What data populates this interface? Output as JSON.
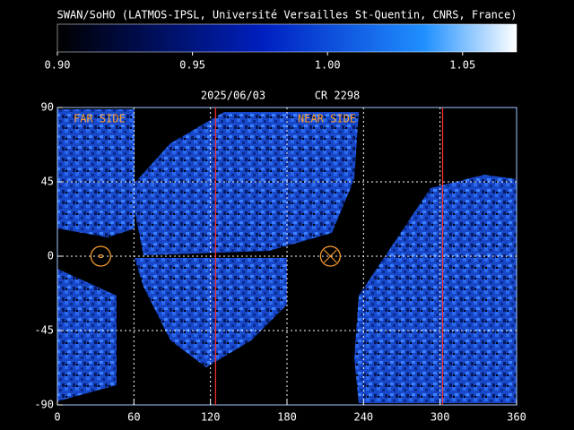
{
  "header": {
    "title": "SWAN/SoHO (LATMOS-IPSL, Université Versailles St-Quentin, CNRS, France)"
  },
  "chart_data": {
    "type": "heatmap",
    "colorbar": {
      "lim": [
        0.9,
        1.07
      ],
      "ticks": [
        {
          "value": 0.9,
          "label": "0.90"
        },
        {
          "value": 0.95,
          "label": "0.95"
        },
        {
          "value": 1.0,
          "label": "1.00"
        },
        {
          "value": 1.05,
          "label": "1.05"
        }
      ]
    },
    "date": "2025/06/03",
    "rotation": "CR 2298",
    "xlim": [
      0,
      360
    ],
    "ylim": [
      -90,
      90
    ],
    "xticks": [
      0,
      60,
      120,
      180,
      240,
      300,
      360
    ],
    "yticks": [
      90,
      45,
      0,
      -45,
      -90
    ],
    "grid": true,
    "annotations": [
      {
        "text": "FAR SIDE"
      },
      {
        "text": "NEAR SIDE"
      }
    ],
    "meridians": [
      124,
      302
    ],
    "meridian_color": "#ff3030",
    "symbols": [
      {
        "x": 34,
        "y": 0,
        "kind": "dot"
      },
      {
        "x": 214,
        "y": 0,
        "kind": "cross"
      }
    ],
    "symbol_color": "#ffa030"
  }
}
